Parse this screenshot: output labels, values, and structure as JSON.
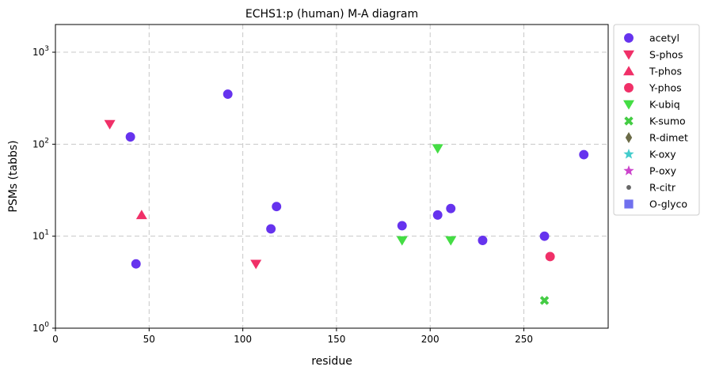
{
  "chart_data": {
    "type": "scatter",
    "title": "ECHS1:p (human) M-A diagram",
    "xlabel": "residue",
    "ylabel": "PSMs (tabbs)",
    "xlim": [
      0,
      295
    ],
    "ylim": [
      1,
      2000
    ],
    "yscale": "log",
    "x_ticks": [
      0,
      50,
      100,
      150,
      200,
      250
    ],
    "y_ticks": [
      {
        "value": 1,
        "base": "10",
        "exp": "0"
      },
      {
        "value": 10,
        "base": "10",
        "exp": "1"
      },
      {
        "value": 100,
        "base": "10",
        "exp": "2"
      },
      {
        "value": 1000,
        "base": "10",
        "exp": "3"
      }
    ],
    "grid": true,
    "legend_position": "outside-right",
    "series": [
      {
        "name": "acetyl",
        "marker": "circle",
        "color": "#6633ee",
        "points": [
          [
            40,
            120
          ],
          [
            43,
            5
          ],
          [
            92,
            350
          ],
          [
            115,
            12
          ],
          [
            118,
            21
          ],
          [
            185,
            13
          ],
          [
            204,
            17
          ],
          [
            211,
            20
          ],
          [
            228,
            9
          ],
          [
            261,
            10
          ],
          [
            282,
            77
          ]
        ]
      },
      {
        "name": "S-phos",
        "marker": "triangle-down",
        "color": "#f03068",
        "points": [
          [
            29,
            165
          ],
          [
            107,
            5
          ]
        ]
      },
      {
        "name": "T-phos",
        "marker": "triangle-up",
        "color": "#f03068",
        "points": [
          [
            46,
            17
          ]
        ]
      },
      {
        "name": "Y-phos",
        "marker": "circle",
        "color": "#f03068",
        "points": [
          [
            264,
            6
          ]
        ]
      },
      {
        "name": "K-ubiq",
        "marker": "triangle-down",
        "color": "#44dd44",
        "points": [
          [
            185,
            9
          ],
          [
            204,
            90
          ],
          [
            211,
            9
          ]
        ]
      },
      {
        "name": "K-sumo",
        "marker": "x-cross",
        "color": "#44cc44",
        "points": [
          [
            261,
            2
          ]
        ]
      },
      {
        "name": "R-dimet",
        "marker": "diamond",
        "color": "#6b6b47",
        "points": []
      },
      {
        "name": "K-oxy",
        "marker": "star",
        "color": "#44cccc",
        "points": []
      },
      {
        "name": "P-oxy",
        "marker": "star",
        "color": "#cc44cc",
        "points": []
      },
      {
        "name": "R-citr",
        "marker": "small-circle",
        "color": "#666666",
        "points": []
      },
      {
        "name": "O-glyco",
        "marker": "square",
        "color": "#7070ee",
        "points": []
      }
    ]
  }
}
